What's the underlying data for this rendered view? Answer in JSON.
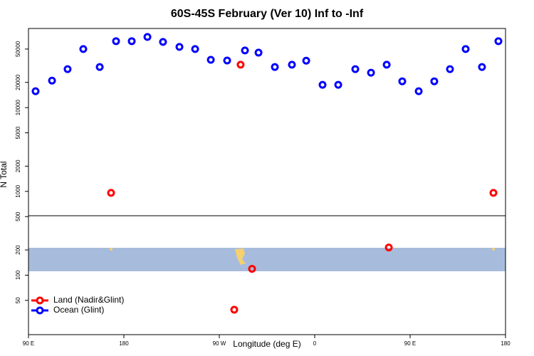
{
  "chart_data": {
    "type": "scatter",
    "title": "60S-45S February (Ver 10)   Inf to -Inf",
    "x_label": "Longitude (deg E)",
    "y_label": "N Total",
    "xlim": [
      90,
      540
    ],
    "xticks": [
      {
        "value": 90,
        "label": "90 E"
      },
      {
        "value": 180,
        "label": "180"
      },
      {
        "value": 270,
        "label": "90 W"
      },
      {
        "value": 360,
        "label": "0"
      },
      {
        "value": 450,
        "label": "90 E"
      },
      {
        "value": 540,
        "label": "180"
      }
    ],
    "ylim": [
      19.5,
      88000
    ],
    "yticks": [
      50,
      100,
      200,
      500,
      1000,
      2000,
      5000,
      10000,
      20000,
      50000
    ],
    "log_y": true,
    "legend": "bottom-left",
    "series": [
      {
        "name": "Land (Nadir&Glint)",
        "color": "#ff0000",
        "x": [
          167.9,
          290.1,
          300.9,
          284.1,
          429.9,
          528.6
        ],
        "values": [
          960,
          32500,
          119,
          38.7,
          214,
          960
        ]
      },
      {
        "name": "Ocean (Glint)",
        "color": "#0000ff",
        "x": [
          96.7,
          112.2,
          126.9,
          141.7,
          157.2,
          172.6,
          187.4,
          202.2,
          216.9,
          232.4,
          247.2,
          262,
          277.4,
          294.2,
          307,
          322.4,
          338.5,
          352,
          367.4,
          382.2,
          398.3,
          413.1,
          427.9,
          442.6,
          458.1,
          472.8,
          487.6,
          502.4,
          517.8,
          533.3
        ],
        "values": [
          15700,
          21000,
          28800,
          50000,
          30500,
          62100,
          62100,
          69800,
          60800,
          53000,
          50000,
          37200,
          36500,
          48100,
          45300,
          30500,
          32500,
          36300,
          18700,
          18700,
          28800,
          26100,
          32500,
          20600,
          15700,
          20600,
          28800,
          50000,
          30500,
          62100
        ]
      }
    ]
  }
}
